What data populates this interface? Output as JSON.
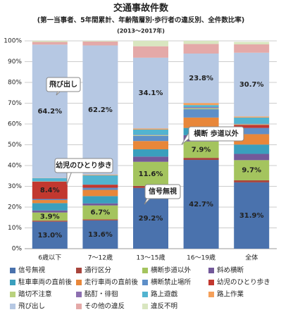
{
  "chart_data": {
    "type": "stacked_bar",
    "title": "交通事故件数",
    "subtitle": "(第一当事者、5年間累計、年齢階層別·歩行者の違反別、全件数比率)",
    "period": "(2013～2017年)",
    "categories": [
      "6歳以下",
      "7～12歳",
      "13～15歳",
      "16～19歳",
      "全体"
    ],
    "ylim": [
      0,
      100
    ],
    "yticks": [
      {
        "value": 0,
        "label": "0%"
      },
      {
        "value": 10,
        "label": "10%"
      },
      {
        "value": 20,
        "label": "20%"
      },
      {
        "value": 30,
        "label": "30%"
      },
      {
        "value": 40,
        "label": "40%"
      },
      {
        "value": 50,
        "label": "50%"
      },
      {
        "value": 60,
        "label": "60%"
      },
      {
        "value": 70,
        "label": "70%"
      },
      {
        "value": 80,
        "label": "80%"
      },
      {
        "value": 90,
        "label": "90%"
      },
      {
        "value": 100,
        "label": "100%"
      }
    ],
    "grid": true,
    "series": [
      {
        "name": "信号無視",
        "color": "#4a72ad",
        "values": [
          13.0,
          13.6,
          29.2,
          42.7,
          31.9
        ],
        "value_labels": [
          "13.0%",
          "13.6%",
          "29.2%",
          "42.7%",
          "31.9%"
        ]
      },
      {
        "name": "通行区分",
        "color": "#a8443c",
        "values": [
          0.5,
          0.5,
          1.0,
          1.0,
          1.0
        ]
      },
      {
        "name": "横断歩道以外",
        "color": "#a4c45e",
        "values": [
          3.9,
          6.7,
          11.6,
          7.9,
          9.7
        ],
        "value_labels": [
          "3.9%",
          "6.7%",
          "11.6%",
          "7.9%",
          "9.7%"
        ]
      },
      {
        "name": "斜め横断",
        "color": "#73599a",
        "values": [
          1.0,
          1.0,
          2.5,
          3.0,
          3.0
        ]
      },
      {
        "name": "駐車車両の直前後",
        "color": "#3a9fbd",
        "values": [
          3.5,
          3.5,
          3.5,
          3.5,
          4.5
        ]
      },
      {
        "name": "走行車両の直前後",
        "color": "#e8873a",
        "values": [
          1.5,
          3.0,
          4.0,
          5.0,
          5.0
        ]
      },
      {
        "name": "横断禁止場所",
        "color": "#5e8fc8",
        "values": [
          0.5,
          1.0,
          2.5,
          4.0,
          3.0
        ]
      },
      {
        "name": "幼児のひとり歩き",
        "color": "#c2382f",
        "values": [
          8.4,
          1.5,
          0,
          0,
          1.5
        ],
        "value_labels": [
          "8.4%",
          null,
          null,
          null,
          null
        ]
      },
      {
        "name": "踏切不注意",
        "color": "#b9d27e",
        "values": [
          0.1,
          0,
          0.3,
          0.5,
          0.3
        ]
      },
      {
        "name": "酩酊・徘徊",
        "color": "#8d6fb0",
        "values": [
          0,
          0,
          0.2,
          0.5,
          0.2
        ]
      },
      {
        "name": "路上遊戯",
        "color": "#52b4d0",
        "values": [
          1.5,
          4.5,
          2.5,
          1.0,
          3.0
        ]
      },
      {
        "name": "路上作業",
        "color": "#f5a05a",
        "values": [
          0.1,
          0.3,
          0.5,
          1.0,
          0.5
        ]
      },
      {
        "name": "飛び出し",
        "color": "#b6c8e3",
        "values": [
          64.2,
          62.2,
          34.1,
          23.8,
          30.7
        ],
        "value_labels": [
          "64.2%",
          "62.2%",
          "34.1%",
          "23.8%",
          "30.7%"
        ]
      },
      {
        "name": "その他の違反",
        "color": "#e4a9a8",
        "values": [
          1.3,
          1.9,
          5.5,
          4.6,
          4.0
        ]
      },
      {
        "name": "違反不明",
        "color": "#d9e6c0",
        "values": [
          0.5,
          0.3,
          2.6,
          1.5,
          1.2
        ]
      }
    ],
    "annotations": [
      "飛び出し",
      "幼児のひとり歩き",
      "信号無視",
      "横断 歩道以外"
    ]
  }
}
